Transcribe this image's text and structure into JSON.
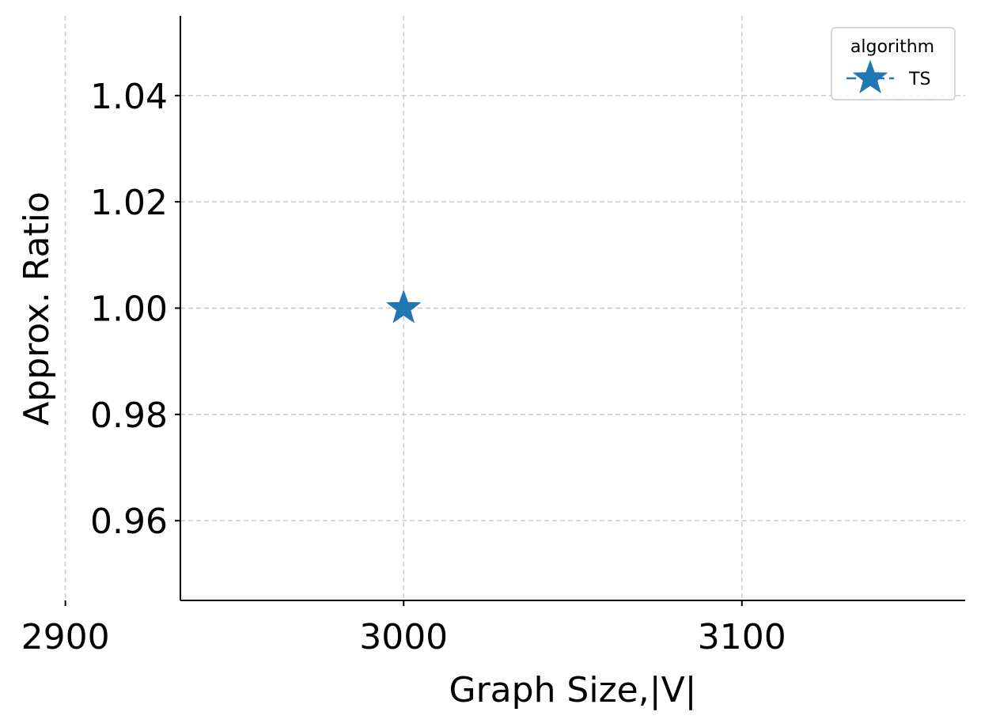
{
  "chart_data": {
    "type": "scatter",
    "xlabel": "Graph Size,|V|",
    "ylabel": "Approx. Ratio",
    "xlim": [
      2934,
      3166
    ],
    "ylim": [
      0.945,
      1.055
    ],
    "xticks": [
      2900,
      3000,
      3100
    ],
    "xtick_labels": [
      "2900",
      "3000",
      "3100"
    ],
    "yticks": [
      0.96,
      0.98,
      1.0,
      1.02,
      1.04
    ],
    "ytick_labels": [
      "0.96",
      "0.98",
      "1.00",
      "1.02",
      "1.04"
    ],
    "grid": true,
    "legend": {
      "title": "algorithm",
      "placement": "top-right",
      "entries": [
        {
          "name": "TS",
          "color": "#1f77b4",
          "marker": "star"
        }
      ]
    },
    "series": [
      {
        "name": "TS",
        "color": "#1f77b4",
        "marker": "star",
        "points": [
          {
            "x": 3000,
            "y": 1.0
          }
        ]
      }
    ]
  }
}
